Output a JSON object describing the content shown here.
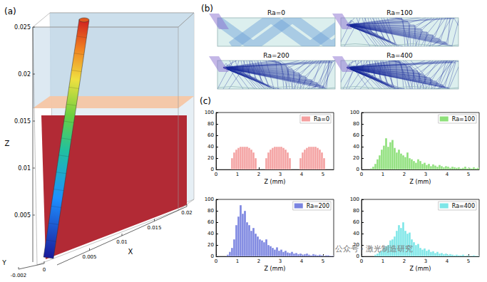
{
  "panels": {
    "a": {
      "label": "(a)",
      "axes": {
        "x": {
          "name": "X",
          "lim": [
            0,
            0.02
          ],
          "ticks": [
            0.005,
            0.01,
            0.015,
            0.02
          ]
        },
        "y": {
          "name": "Y",
          "lim": [
            -0.002,
            0
          ],
          "ticks": [
            -0.002,
            0
          ]
        },
        "z": {
          "name": "Z",
          "lim": [
            0,
            0.025
          ],
          "ticks": [
            0.005,
            0.01,
            0.015,
            0.02,
            0.025
          ]
        }
      }
    },
    "b": {
      "label": "(b)",
      "cases": [
        "Ra=0",
        "Ra=100",
        "Ra=200",
        "Ra=400"
      ]
    },
    "c": {
      "label": "(c)"
    }
  },
  "chart_data": [
    {
      "type": "histogram",
      "xlabel": "Z (mm)",
      "xlim": [
        0,
        5.5
      ],
      "xticks": [
        0,
        1,
        2,
        3,
        4,
        5
      ],
      "ylim": [
        0,
        100
      ],
      "yticks": [
        0,
        20,
        40,
        60,
        80,
        100
      ],
      "grid": false,
      "legend": "upper right",
      "bins": [
        0,
        0.1,
        0.2,
        0.3,
        0.4,
        0.5,
        0.6,
        0.7,
        0.8,
        0.9,
        1,
        1.1,
        1.2,
        1.3,
        1.4,
        1.5,
        1.6,
        1.7,
        1.8,
        1.9,
        2,
        2.1,
        2.2,
        2.3,
        2.4,
        2.5,
        2.6,
        2.7,
        2.8,
        2.9,
        3,
        3.1,
        3.2,
        3.3,
        3.4,
        3.5,
        3.6,
        3.7,
        3.8,
        3.9,
        4,
        4.1,
        4.2,
        4.3,
        4.4,
        4.5,
        4.6,
        4.7,
        4.8,
        4.9,
        5,
        5.1,
        5.2,
        5.3,
        5.4,
        5.5
      ],
      "series": [
        {
          "name": "Ra=0",
          "color": "#f4a0a0",
          "values": [
            0,
            0,
            0,
            0,
            0,
            0,
            0,
            20,
            30,
            35,
            38,
            40,
            40,
            40,
            40,
            38,
            35,
            30,
            20,
            0,
            0,
            0,
            0,
            20,
            30,
            35,
            38,
            40,
            40,
            40,
            40,
            38,
            35,
            30,
            20,
            0,
            0,
            0,
            0,
            20,
            30,
            35,
            38,
            40,
            40,
            40,
            40,
            38,
            35,
            30,
            20,
            0,
            0,
            0,
            0
          ]
        }
      ]
    },
    {
      "type": "histogram",
      "xlabel": "Z (mm)",
      "xlim": [
        0,
        5.5
      ],
      "xticks": [
        0,
        1,
        2,
        3,
        4,
        5
      ],
      "ylim": [
        0,
        100
      ],
      "yticks": [
        0,
        20,
        40,
        60,
        80,
        100
      ],
      "grid": false,
      "legend": "upper right",
      "bins": [
        0,
        0.1,
        0.2,
        0.3,
        0.4,
        0.5,
        0.6,
        0.7,
        0.8,
        0.9,
        1,
        1.1,
        1.2,
        1.3,
        1.4,
        1.5,
        1.6,
        1.7,
        1.8,
        1.9,
        2,
        2.1,
        2.2,
        2.3,
        2.4,
        2.5,
        2.6,
        2.7,
        2.8,
        2.9,
        3,
        3.1,
        3.2,
        3.3,
        3.4,
        3.5,
        3.6,
        3.7,
        3.8,
        3.9,
        4,
        4.1,
        4.2,
        4.3,
        4.4,
        4.5,
        4.6,
        4.7,
        4.8,
        4.9,
        5,
        5.1,
        5.2,
        5.3,
        5.4,
        5.5
      ],
      "series": [
        {
          "name": "Ra=100",
          "color": "#8ee07a",
          "values": [
            0,
            0,
            0,
            0,
            2,
            5,
            10,
            18,
            25,
            35,
            42,
            55,
            40,
            48,
            52,
            38,
            30,
            35,
            28,
            25,
            22,
            30,
            20,
            18,
            15,
            12,
            18,
            15,
            10,
            12,
            8,
            10,
            6,
            9,
            7,
            5,
            8,
            6,
            4,
            6,
            5,
            3,
            5,
            4,
            3,
            4,
            2,
            3,
            5,
            2,
            3,
            2,
            4,
            2,
            3
          ]
        }
      ]
    },
    {
      "type": "histogram",
      "xlabel": "Z (mm)",
      "xlim": [
        0,
        5.5
      ],
      "xticks": [
        0,
        1,
        2,
        3,
        4,
        5
      ],
      "ylim": [
        0,
        100
      ],
      "yticks": [
        0,
        20,
        40,
        60,
        80,
        100
      ],
      "grid": false,
      "legend": "upper right",
      "bins": [
        0,
        0.1,
        0.2,
        0.3,
        0.4,
        0.5,
        0.6,
        0.7,
        0.8,
        0.9,
        1,
        1.1,
        1.2,
        1.3,
        1.4,
        1.5,
        1.6,
        1.7,
        1.8,
        1.9,
        2,
        2.1,
        2.2,
        2.3,
        2.4,
        2.5,
        2.6,
        2.7,
        2.8,
        2.9,
        3,
        3.1,
        3.2,
        3.3,
        3.4,
        3.5,
        3.6,
        3.7,
        3.8,
        3.9,
        4,
        4.1,
        4.2,
        4.3,
        4.4,
        4.5,
        4.6,
        4.7,
        4.8,
        4.9,
        5,
        5.1,
        5.2,
        5.3,
        5.4,
        5.5
      ],
      "series": [
        {
          "name": "Ra=200",
          "color": "#7a84e0",
          "values": [
            0,
            0,
            0,
            0,
            0,
            3,
            8,
            15,
            30,
            55,
            70,
            90,
            75,
            80,
            60,
            55,
            45,
            50,
            40,
            35,
            30,
            28,
            25,
            30,
            20,
            18,
            15,
            12,
            16,
            10,
            12,
            8,
            10,
            7,
            6,
            8,
            5,
            6,
            4,
            5,
            3,
            4,
            5,
            3,
            2,
            4,
            3,
            2,
            3,
            2,
            1,
            2,
            2,
            1,
            1
          ]
        }
      ]
    },
    {
      "type": "histogram",
      "xlabel": "Z (mm)",
      "xlim": [
        0,
        5.5
      ],
      "xticks": [
        0,
        1,
        2,
        3,
        4,
        5
      ],
      "ylim": [
        0,
        100
      ],
      "yticks": [
        0,
        20,
        40,
        60,
        80,
        100
      ],
      "grid": false,
      "legend": "upper right",
      "bins": [
        0,
        0.1,
        0.2,
        0.3,
        0.4,
        0.5,
        0.6,
        0.7,
        0.8,
        0.9,
        1,
        1.1,
        1.2,
        1.3,
        1.4,
        1.5,
        1.6,
        1.7,
        1.8,
        1.9,
        2,
        2.1,
        2.2,
        2.3,
        2.4,
        2.5,
        2.6,
        2.7,
        2.8,
        2.9,
        3,
        3.1,
        3.2,
        3.3,
        3.4,
        3.5,
        3.6,
        3.7,
        3.8,
        3.9,
        4,
        4.1,
        4.2,
        4.3,
        4.4,
        4.5,
        4.6,
        4.7,
        4.8,
        4.9,
        5,
        5.1,
        5.2,
        5.3,
        5.4,
        5.5
      ],
      "series": [
        {
          "name": "Ra=400",
          "color": "#7de6e8",
          "values": [
            0,
            0,
            0,
            0,
            0,
            0,
            3,
            5,
            8,
            10,
            15,
            18,
            20,
            28,
            30,
            35,
            45,
            55,
            50,
            60,
            45,
            40,
            42,
            30,
            25,
            20,
            22,
            15,
            12,
            14,
            10,
            12,
            8,
            9,
            6,
            8,
            5,
            6,
            4,
            5,
            3,
            4,
            3,
            2,
            3,
            2,
            2,
            3,
            1,
            2,
            1,
            1,
            2,
            1,
            1
          ]
        }
      ]
    }
  ],
  "watermark": "公众号 · 激光制造研究"
}
